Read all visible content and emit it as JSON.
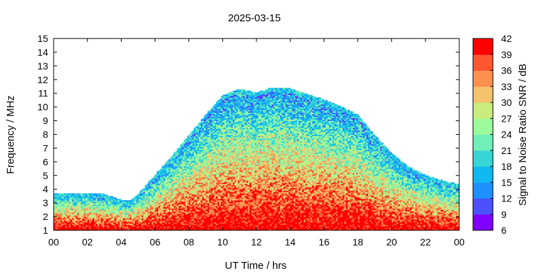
{
  "chart_data": {
    "type": "heatmap",
    "title": "2025-03-15",
    "xlabel": "UT Time / hrs",
    "ylabel": "Frequency / MHz",
    "colorbar_label": "Signal to Noise Ratio SNR / dB",
    "xlim": [
      0,
      24
    ],
    "ylim": [
      1,
      15
    ],
    "x_ticks": [
      "00",
      "02",
      "04",
      "06",
      "08",
      "10",
      "12",
      "14",
      "16",
      "18",
      "20",
      "22",
      "00"
    ],
    "y_ticks": [
      "1",
      "2",
      "3",
      "4",
      "5",
      "6",
      "7",
      "8",
      "9",
      "10",
      "11",
      "12",
      "13",
      "14",
      "15"
    ],
    "colorbar": {
      "range": [
        6,
        42
      ],
      "ticks": [
        "6",
        "9",
        "12",
        "15",
        "18",
        "21",
        "24",
        "27",
        "30",
        "33",
        "36",
        "39",
        "42"
      ],
      "colors": [
        "#8000ff",
        "#4c50ff",
        "#1e90ff",
        "#0fb8ef",
        "#36d6d6",
        "#6ff0b8",
        "#9cfa9a",
        "#c8ec7e",
        "#f5c26e",
        "#ff9050",
        "#ff5630",
        "#ff0000"
      ]
    },
    "upper_edge_mhz": {
      "hours": [
        0,
        1,
        2,
        3,
        4,
        4.5,
        5,
        6,
        7,
        8,
        9,
        10,
        11,
        12,
        13,
        14,
        15,
        16,
        17,
        18,
        19,
        20,
        21,
        22,
        23,
        24
      ],
      "values": [
        3.7,
        3.7,
        3.7,
        3.6,
        3.2,
        3.1,
        3.6,
        5.0,
        6.4,
        7.9,
        9.4,
        10.8,
        11.3,
        11.0,
        11.4,
        11.3,
        10.9,
        10.5,
        10.0,
        9.4,
        7.9,
        6.6,
        5.6,
        5.0,
        4.6,
        4.3
      ]
    },
    "lower_edge_mhz": {
      "hours": [
        0,
        24
      ],
      "values": [
        1,
        1
      ]
    }
  }
}
